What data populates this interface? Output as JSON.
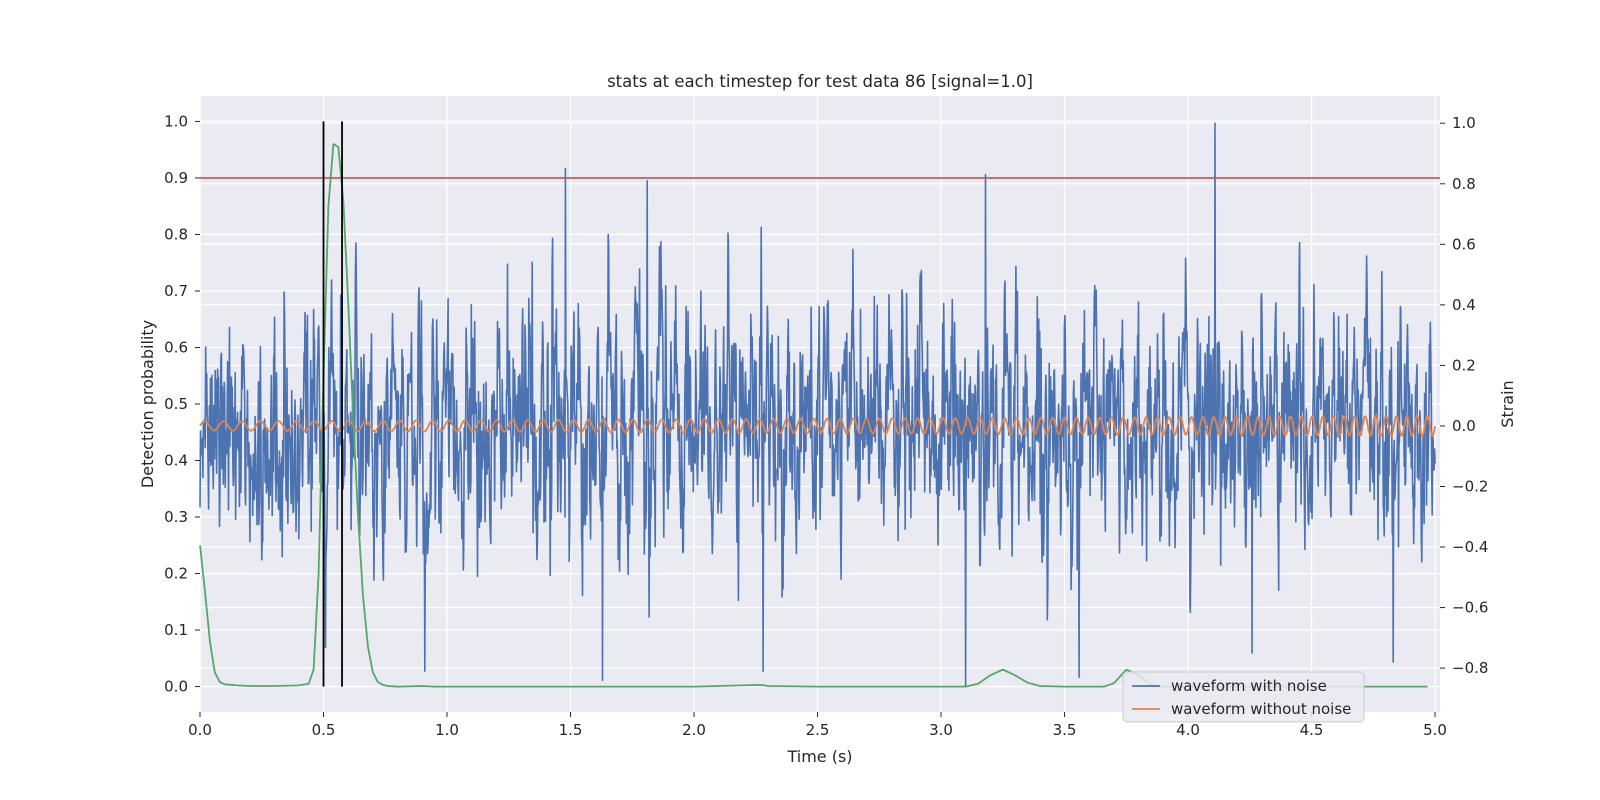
{
  "chart_data": {
    "type": "line",
    "title": "stats at each timestep for test data 86 [signal=1.0]",
    "xlabel": "Time (s)",
    "ylabel_left": "Detection probability",
    "ylabel_right": "Strain",
    "xlim": [
      0.0,
      5.02
    ],
    "ylim_left": [
      -0.045,
      1.045
    ],
    "ylim_right": [
      -0.945,
      1.09
    ],
    "x_ticks": [
      "0.0",
      "0.5",
      "1.0",
      "1.5",
      "2.0",
      "2.5",
      "3.0",
      "3.5",
      "4.0",
      "4.5",
      "5.0"
    ],
    "y_left_ticks": [
      "0.0",
      "0.1",
      "0.2",
      "0.3",
      "0.4",
      "0.5",
      "0.6",
      "0.7",
      "0.8",
      "0.9",
      "1.0"
    ],
    "y_right_ticks": [
      "1.0",
      "0.8",
      "0.6",
      "0.4",
      "0.2",
      "0.0",
      "−0.2",
      "−0.4",
      "−0.6",
      "−0.8"
    ],
    "grid": true,
    "legend_position": "lower-right",
    "threshold": {
      "axis": "left",
      "y": 0.9,
      "color": "#c44e52"
    },
    "event_markers": {
      "axis": "left",
      "x": [
        0.5,
        0.575
      ],
      "y_range": [
        0.0,
        1.0
      ],
      "color": "#000000"
    },
    "series": [
      {
        "name": "waveform with noise",
        "axis": "right",
        "color": "#4c72b0",
        "kind": "noise",
        "x_range": [
          0.0,
          5.0
        ],
        "amplitude_std": 0.2,
        "notable_peaks": [
          {
            "x": 1.48,
            "y": 0.85
          },
          {
            "x": 1.81,
            "y": 0.81
          },
          {
            "x": 3.18,
            "y": 0.83
          },
          {
            "x": 4.11,
            "y": 1.0
          },
          {
            "x": 1.63,
            "y": -0.84
          },
          {
            "x": 2.28,
            "y": -0.81
          },
          {
            "x": 3.1,
            "y": -0.86
          },
          {
            "x": 0.91,
            "y": -0.81
          },
          {
            "x": 3.56,
            "y": -0.83
          },
          {
            "x": 4.26,
            "y": -0.75
          },
          {
            "x": 4.83,
            "y": -0.78
          }
        ]
      },
      {
        "name": "waveform without noise",
        "axis": "right",
        "color": "#dd8452",
        "kind": "sinusoid",
        "x_range": [
          0.0,
          5.0
        ],
        "amplitude_start": 0.015,
        "amplitude_end": 0.033,
        "cycles": 93
      },
      {
        "axis": "left",
        "color": "#55a868",
        "kind": "curve",
        "x": [
          0.0,
          0.02,
          0.04,
          0.06,
          0.08,
          0.1,
          0.15,
          0.2,
          0.3,
          0.4,
          0.44,
          0.46,
          0.48,
          0.5,
          0.52,
          0.54,
          0.56,
          0.58,
          0.6,
          0.62,
          0.64,
          0.66,
          0.68,
          0.7,
          0.72,
          0.74,
          0.76,
          0.8,
          0.9,
          0.95,
          1.0,
          1.5,
          2.0,
          2.27,
          2.3,
          2.5,
          3.0,
          3.1,
          3.15,
          3.2,
          3.25,
          3.3,
          3.35,
          3.4,
          3.5,
          3.6,
          3.66,
          3.7,
          3.75,
          3.8,
          3.85,
          3.9,
          4.0,
          4.5,
          4.97
        ],
        "y": [
          0.25,
          0.17,
          0.08,
          0.025,
          0.008,
          0.004,
          0.002,
          0.001,
          0.001,
          0.002,
          0.005,
          0.03,
          0.2,
          0.55,
          0.85,
          0.96,
          0.955,
          0.86,
          0.68,
          0.48,
          0.3,
          0.16,
          0.07,
          0.025,
          0.008,
          0.003,
          0.001,
          0.0,
          0.001,
          0.0,
          0.0,
          0.0,
          0.0,
          0.003,
          0.001,
          0.0,
          0.0,
          0.0,
          0.005,
          0.02,
          0.03,
          0.02,
          0.007,
          0.001,
          0.0,
          0.0,
          0.0,
          0.006,
          0.03,
          0.02,
          0.003,
          0.0,
          0.0,
          0.0,
          0.0
        ]
      }
    ]
  }
}
